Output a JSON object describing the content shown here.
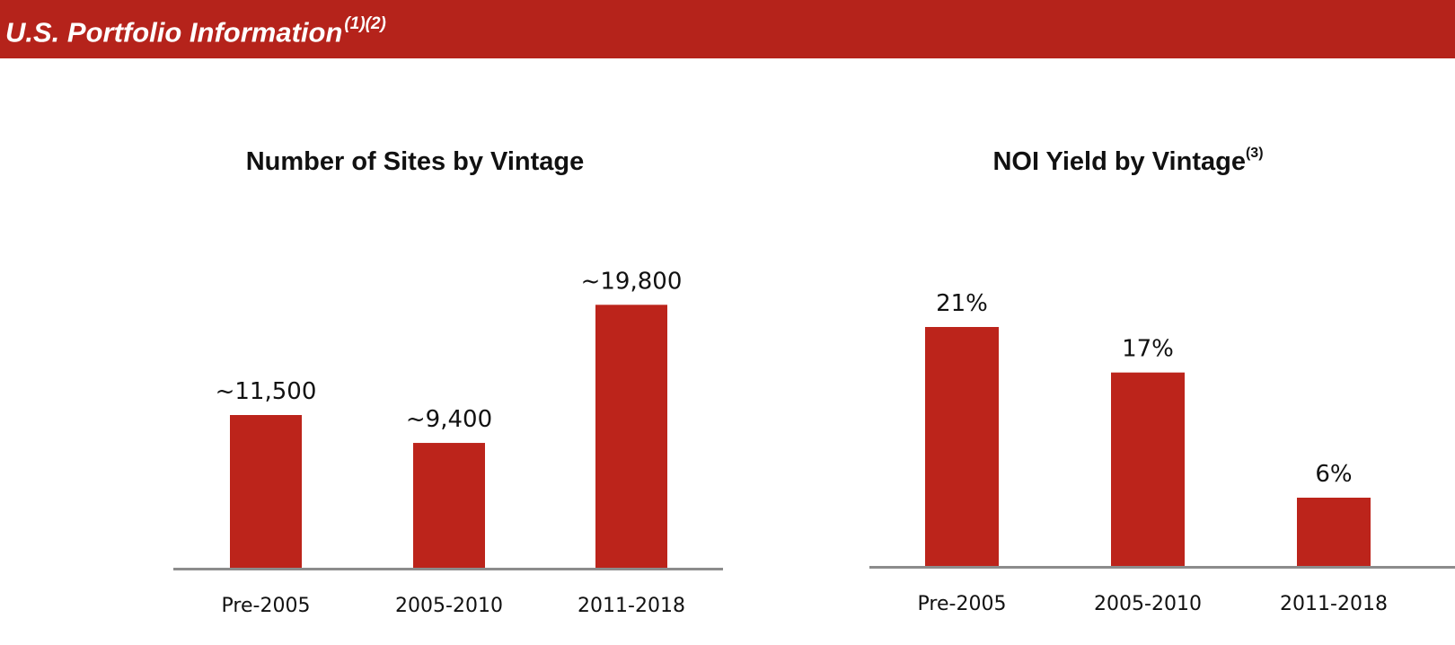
{
  "header": {
    "title": "U.S. Portfolio Information",
    "footnote": "(1)(2)"
  },
  "colors": {
    "accent": "#b5231b",
    "bar": "#bc241b",
    "axis": "#8c8c8c"
  },
  "chart_data": [
    {
      "type": "bar",
      "title": "Number of Sites by Vintage",
      "title_footnote": "",
      "categories": [
        "Pre-2005",
        "2005-2010",
        "2011-2018"
      ],
      "values": [
        11500,
        9400,
        19800
      ],
      "data_labels": [
        "~11,500",
        "~9,400",
        "~19,800"
      ],
      "xlabel": "",
      "ylabel": "",
      "ylim": [
        0,
        23000
      ],
      "grid": false,
      "legend": "none"
    },
    {
      "type": "bar",
      "title": "NOI Yield by Vintage",
      "title_footnote": "(3)",
      "categories": [
        "Pre-2005",
        "2005-2010",
        "2011-2018"
      ],
      "values": [
        21,
        17,
        6
      ],
      "data_labels": [
        "21%",
        "17%",
        "6%"
      ],
      "xlabel": "",
      "ylabel": "",
      "ylim": [
        0,
        30
      ],
      "grid": false,
      "legend": "none"
    }
  ]
}
